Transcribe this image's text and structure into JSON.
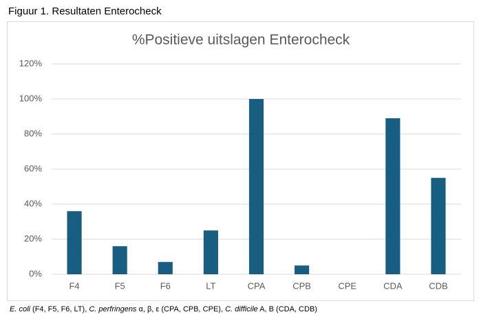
{
  "figure_caption": "Figuur 1.  Resultaten Enterocheck",
  "chart_data": {
    "type": "bar",
    "title": "%Positieve uitslagen Enterocheck",
    "categories": [
      "F4",
      "F5",
      "F6",
      "LT",
      "CPA",
      "CPB",
      "CPE",
      "CDA",
      "CDB"
    ],
    "values": [
      36,
      16,
      7,
      25,
      100,
      5,
      0,
      89,
      55
    ],
    "color": "#175e82",
    "ylim": [
      0,
      120
    ],
    "yticks": [
      {
        "value": 0,
        "label": "0%"
      },
      {
        "value": 20,
        "label": "20%"
      },
      {
        "value": 40,
        "label": "40%"
      },
      {
        "value": 60,
        "label": "60%"
      },
      {
        "value": 80,
        "label": "80%"
      },
      {
        "value": 100,
        "label": "100%"
      },
      {
        "value": 120,
        "label": "120%"
      }
    ],
    "grid": true
  },
  "footnote": [
    "E. coli",
    " (F4, F5, F6, LT), ",
    "C. perfringens",
    " α, β, ε (CPA, CPB, CPE), ",
    "C. difficile",
    " A, B (CDA, CDB)"
  ]
}
